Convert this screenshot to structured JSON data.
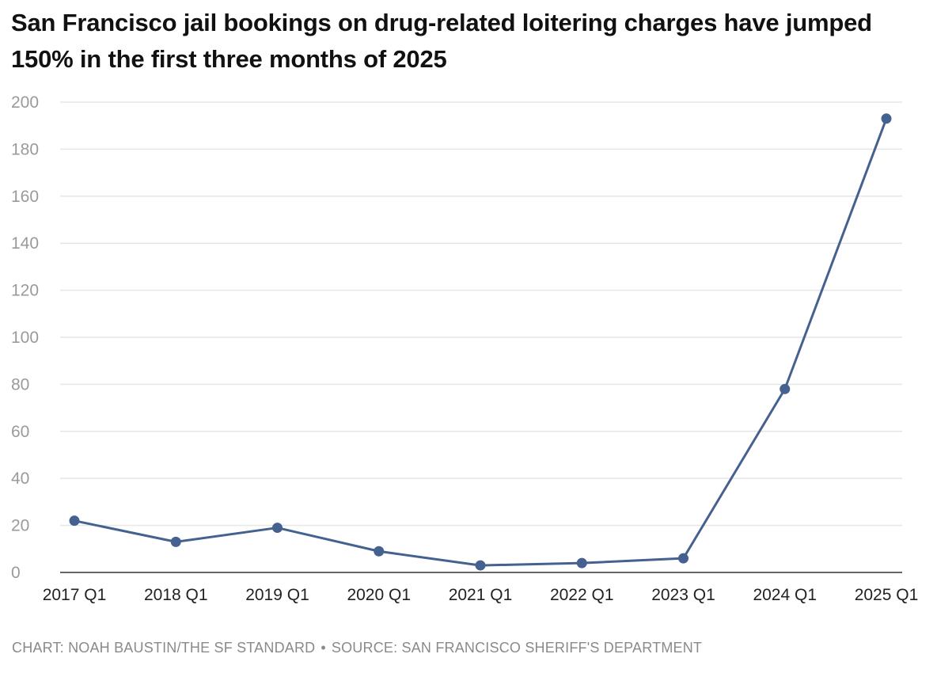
{
  "footer": {
    "credit": "CHART: NOAH BAUSTIN/THE SF STANDARD",
    "separator": "•",
    "source": "SOURCE: SAN FRANCISCO SHERIFF'S DEPARTMENT"
  },
  "colors": {
    "line": "#44618f",
    "grid": "#e6e6e6",
    "baseline": "#333333",
    "y_tick_text": "#9a9a9a",
    "x_tick_text": "#222222",
    "footer_text": "#8a8a8a"
  },
  "chart_data": {
    "type": "line",
    "title": "San Francisco jail bookings on drug-related loitering charges have jumped 150% in the first three months of 2025",
    "xlabel": "",
    "ylabel": "",
    "categories": [
      "2017 Q1",
      "2018 Q1",
      "2019 Q1",
      "2020 Q1",
      "2021 Q1",
      "2022 Q1",
      "2023 Q1",
      "2024 Q1",
      "2025 Q1"
    ],
    "series": [
      {
        "values": [
          22,
          13,
          19,
          9,
          3,
          4,
          6,
          78,
          193
        ]
      }
    ],
    "ylim": [
      0,
      200
    ],
    "yticks": [
      0,
      20,
      40,
      60,
      80,
      100,
      120,
      140,
      160,
      180,
      200
    ],
    "grid": true,
    "legend": "none"
  }
}
